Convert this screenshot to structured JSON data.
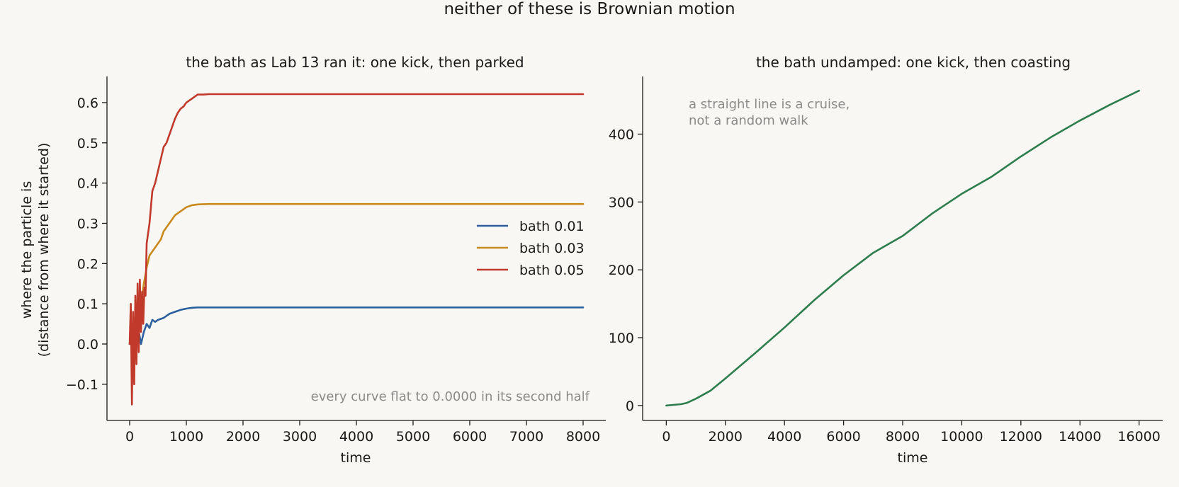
{
  "figure": {
    "suptitle": "neither of these is Brownian motion"
  },
  "chart_data": [
    {
      "type": "line",
      "title": "the bath as Lab 13 ran it: one kick, then parked",
      "xlabel": "time",
      "ylabel_lines": [
        "where the particle is",
        "(distance from where it started)"
      ],
      "xlim": [
        -400,
        8400
      ],
      "ylim": [
        -0.19,
        0.665
      ],
      "xticks": [
        0,
        1000,
        2000,
        3000,
        4000,
        5000,
        6000,
        7000,
        8000
      ],
      "xtick_labels": [
        "0",
        "1000",
        "2000",
        "3000",
        "4000",
        "5000",
        "6000",
        "7000",
        "8000"
      ],
      "yticks": [
        -0.1,
        0.0,
        0.1,
        0.2,
        0.3,
        0.4,
        0.5,
        0.6
      ],
      "ytick_labels": [
        "−0.1",
        "0.0",
        "0.1",
        "0.2",
        "0.3",
        "0.4",
        "0.5",
        "0.6"
      ],
      "legend_position": "center-right",
      "annotation": "every curve flat to 0.0000 in its second half",
      "series": [
        {
          "name": "bath 0.01",
          "color": "#2c5f9e",
          "x": [
            0,
            50,
            100,
            150,
            200,
            250,
            300,
            350,
            400,
            450,
            500,
            600,
            700,
            800,
            900,
            1000,
            1100,
            1200,
            1400,
            1600,
            2000,
            3000,
            4000,
            5000,
            6000,
            7000,
            8000
          ],
          "y": [
            0.0,
            0.03,
            -0.02,
            0.04,
            0.0,
            0.03,
            0.05,
            0.04,
            0.06,
            0.055,
            0.06,
            0.065,
            0.075,
            0.08,
            0.085,
            0.088,
            0.09,
            0.091,
            0.091,
            0.091,
            0.091,
            0.091,
            0.091,
            0.091,
            0.091,
            0.091,
            0.091
          ]
        },
        {
          "name": "bath 0.03",
          "color": "#c98a1d",
          "x": [
            0,
            50,
            100,
            150,
            200,
            250,
            300,
            350,
            400,
            450,
            500,
            550,
            600,
            700,
            800,
            900,
            1000,
            1100,
            1200,
            1400,
            1600,
            2000,
            3000,
            4000,
            5000,
            6000,
            7000,
            8000
          ],
          "y": [
            0.0,
            0.05,
            -0.03,
            0.08,
            0.1,
            0.15,
            0.19,
            0.22,
            0.23,
            0.24,
            0.25,
            0.26,
            0.28,
            0.3,
            0.32,
            0.33,
            0.34,
            0.345,
            0.347,
            0.348,
            0.348,
            0.348,
            0.348,
            0.348,
            0.348,
            0.348,
            0.348,
            0.348
          ]
        },
        {
          "name": "bath 0.05",
          "color": "#c0392b",
          "x": [
            0,
            20,
            40,
            60,
            80,
            100,
            120,
            140,
            160,
            180,
            200,
            220,
            240,
            260,
            280,
            300,
            350,
            400,
            450,
            500,
            550,
            600,
            650,
            700,
            750,
            800,
            850,
            900,
            950,
            1000,
            1050,
            1100,
            1150,
            1200,
            1300,
            1400,
            1600,
            2000,
            3000,
            4000,
            5000,
            6000,
            7000,
            8000
          ],
          "y": [
            0.0,
            0.1,
            -0.15,
            0.08,
            -0.1,
            0.12,
            -0.05,
            0.15,
            -0.02,
            0.16,
            0.03,
            0.13,
            0.05,
            0.14,
            0.12,
            0.25,
            0.3,
            0.38,
            0.4,
            0.43,
            0.46,
            0.49,
            0.5,
            0.52,
            0.54,
            0.56,
            0.575,
            0.585,
            0.59,
            0.6,
            0.605,
            0.61,
            0.615,
            0.62,
            0.62,
            0.621,
            0.621,
            0.621,
            0.621,
            0.621,
            0.621,
            0.621,
            0.621,
            0.621
          ]
        }
      ]
    },
    {
      "type": "line",
      "title": "the bath undamped: one kick, then coasting",
      "xlabel": "time",
      "xlim": [
        -800,
        16800
      ],
      "ylim": [
        -22,
        485
      ],
      "xticks": [
        0,
        2000,
        4000,
        6000,
        8000,
        10000,
        12000,
        14000,
        16000
      ],
      "xtick_labels": [
        "0",
        "2000",
        "4000",
        "6000",
        "8000",
        "10000",
        "12000",
        "14000",
        "16000"
      ],
      "yticks": [
        0,
        100,
        200,
        300,
        400
      ],
      "ytick_labels": [
        "0",
        "100",
        "200",
        "300",
        "400"
      ],
      "annotation_lines": [
        "a straight line is a cruise,",
        "not a random walk"
      ],
      "series": [
        {
          "color": "#2e7d4f",
          "x": [
            0,
            500,
            700,
            1000,
            1500,
            2000,
            3000,
            4000,
            5000,
            6000,
            7000,
            8000,
            9000,
            10000,
            11000,
            12000,
            13000,
            14000,
            15000,
            16000
          ],
          "y": [
            0,
            2,
            4,
            10,
            22,
            40,
            77,
            115,
            155,
            192,
            225,
            250,
            283,
            312,
            337,
            367,
            395,
            420,
            443,
            464
          ]
        }
      ]
    }
  ]
}
